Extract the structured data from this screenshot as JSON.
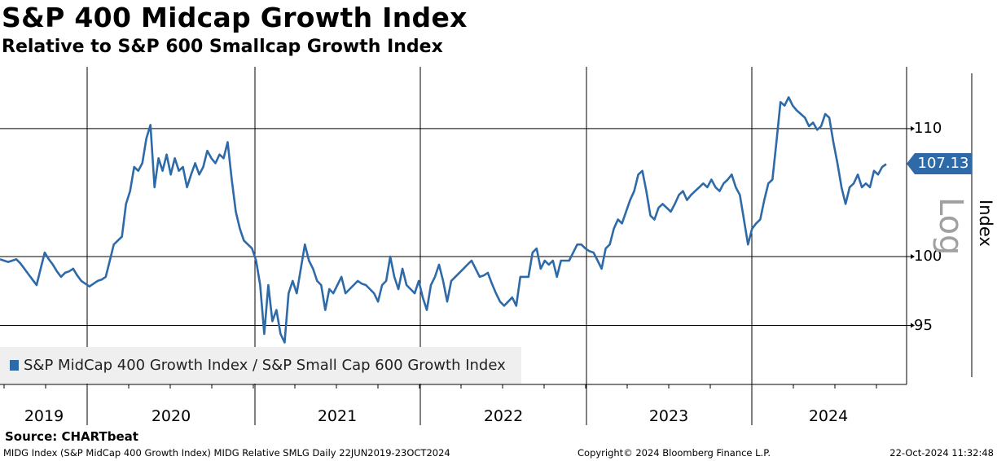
{
  "title": "S&P 400 Midcap Growth Index",
  "subtitle": "Relative to S&P 600 Smallcap Growth Index",
  "chart_data": {
    "type": "line",
    "title": "S&P 400 Midcap Growth Index",
    "subtitle": "Relative to S&P 600 Smallcap Growth Index",
    "ylabel": "Index",
    "yscale": "log",
    "yscale_label": "Log",
    "ylim": [
      92,
      116
    ],
    "yticks": [
      95,
      100,
      110
    ],
    "ytick_labels": [
      "95",
      "100",
      "110"
    ],
    "xrange": [
      "2019-06-22",
      "2024-10-23"
    ],
    "xtick_labels": [
      "2019",
      "2020",
      "2021",
      "2022",
      "2023",
      "2024"
    ],
    "grid": true,
    "legend_position": "bottom-left",
    "series": [
      {
        "name": "S&P MidCap 400 Growth Index / S&P Small Cap 600 Growth Index",
        "color": "#2e6aa8",
        "start_date": "2019-06-22",
        "end_date": "2024-10-22",
        "sampling": "evenly spaced",
        "last_value": "107.13",
        "values": [
          99.8,
          99.7,
          99.6,
          99.7,
          99.8,
          99.5,
          99.1,
          98.7,
          98.3,
          97.9,
          99.1,
          100.3,
          99.8,
          99.4,
          98.9,
          98.5,
          98.8,
          98.9,
          99.1,
          98.6,
          98.2,
          98.0,
          97.8,
          98.0,
          98.2,
          98.3,
          98.5,
          99.7,
          100.9,
          101.2,
          101.5,
          104.0,
          105.0,
          106.9,
          106.6,
          107.2,
          109.2,
          110.3,
          105.3,
          107.6,
          106.6,
          107.9,
          106.3,
          107.6,
          106.6,
          106.9,
          105.3,
          106.3,
          107.2,
          106.3,
          106.9,
          108.2,
          107.6,
          107.2,
          107.9,
          107.6,
          108.9,
          105.9,
          103.4,
          102.1,
          101.2,
          100.9,
          100.6,
          99.7,
          97.9,
          94.4,
          97.9,
          95.3,
          96.1,
          94.4,
          93.8,
          97.3,
          98.2,
          97.3,
          99.1,
          100.9,
          99.7,
          99.1,
          98.2,
          97.9,
          96.1,
          97.6,
          97.3,
          97.9,
          98.5,
          97.3,
          97.6,
          97.9,
          98.2,
          98.0,
          97.9,
          97.6,
          97.3,
          96.7,
          97.9,
          98.2,
          100.0,
          98.5,
          97.6,
          99.1,
          97.9,
          97.6,
          97.3,
          98.2,
          97.0,
          96.1,
          97.9,
          98.5,
          99.4,
          98.2,
          96.7,
          98.2,
          98.5,
          98.8,
          99.1,
          99.4,
          99.7,
          99.1,
          98.5,
          98.6,
          98.8,
          98.0,
          97.3,
          96.7,
          96.4,
          96.7,
          97.0,
          96.4,
          98.5,
          98.5,
          98.5,
          100.3,
          100.6,
          99.1,
          99.7,
          99.4,
          99.7,
          98.5,
          99.7,
          99.7,
          99.7,
          100.3,
          100.9,
          100.9,
          100.6,
          100.4,
          100.3,
          99.7,
          99.1,
          100.6,
          100.9,
          102.1,
          102.8,
          102.5,
          103.4,
          104.3,
          105.0,
          106.3,
          106.6,
          105.0,
          103.1,
          102.8,
          103.7,
          104.0,
          103.7,
          103.4,
          104.0,
          104.7,
          105.0,
          104.3,
          104.7,
          105.0,
          105.3,
          105.6,
          105.3,
          105.9,
          105.3,
          105.0,
          105.6,
          105.9,
          106.3,
          105.3,
          104.7,
          102.8,
          100.9,
          102.1,
          102.5,
          102.8,
          104.3,
          105.6,
          105.9,
          108.9,
          112.2,
          111.9,
          112.6,
          111.9,
          111.5,
          111.2,
          110.9,
          110.2,
          110.5,
          109.9,
          110.2,
          111.2,
          110.9,
          108.9,
          107.2,
          105.3,
          104.0,
          105.3,
          105.6,
          106.3,
          105.3,
          105.6,
          105.3,
          106.6,
          106.3,
          106.9,
          107.13
        ]
      }
    ]
  },
  "legend_label": "S&P MidCap 400 Growth Index / S&P Small Cap 600 Growth Index",
  "source": "Source: CHARTbeat",
  "footer": {
    "left": "MIDG Index (S&P MidCap 400 Growth Index) MIDG Relative SMLG  Daily 22JUN2019-23OCT2024",
    "center": "Copyright© 2024 Bloomberg Finance L.P.",
    "right": "22-Oct-2024 11:32:48"
  }
}
